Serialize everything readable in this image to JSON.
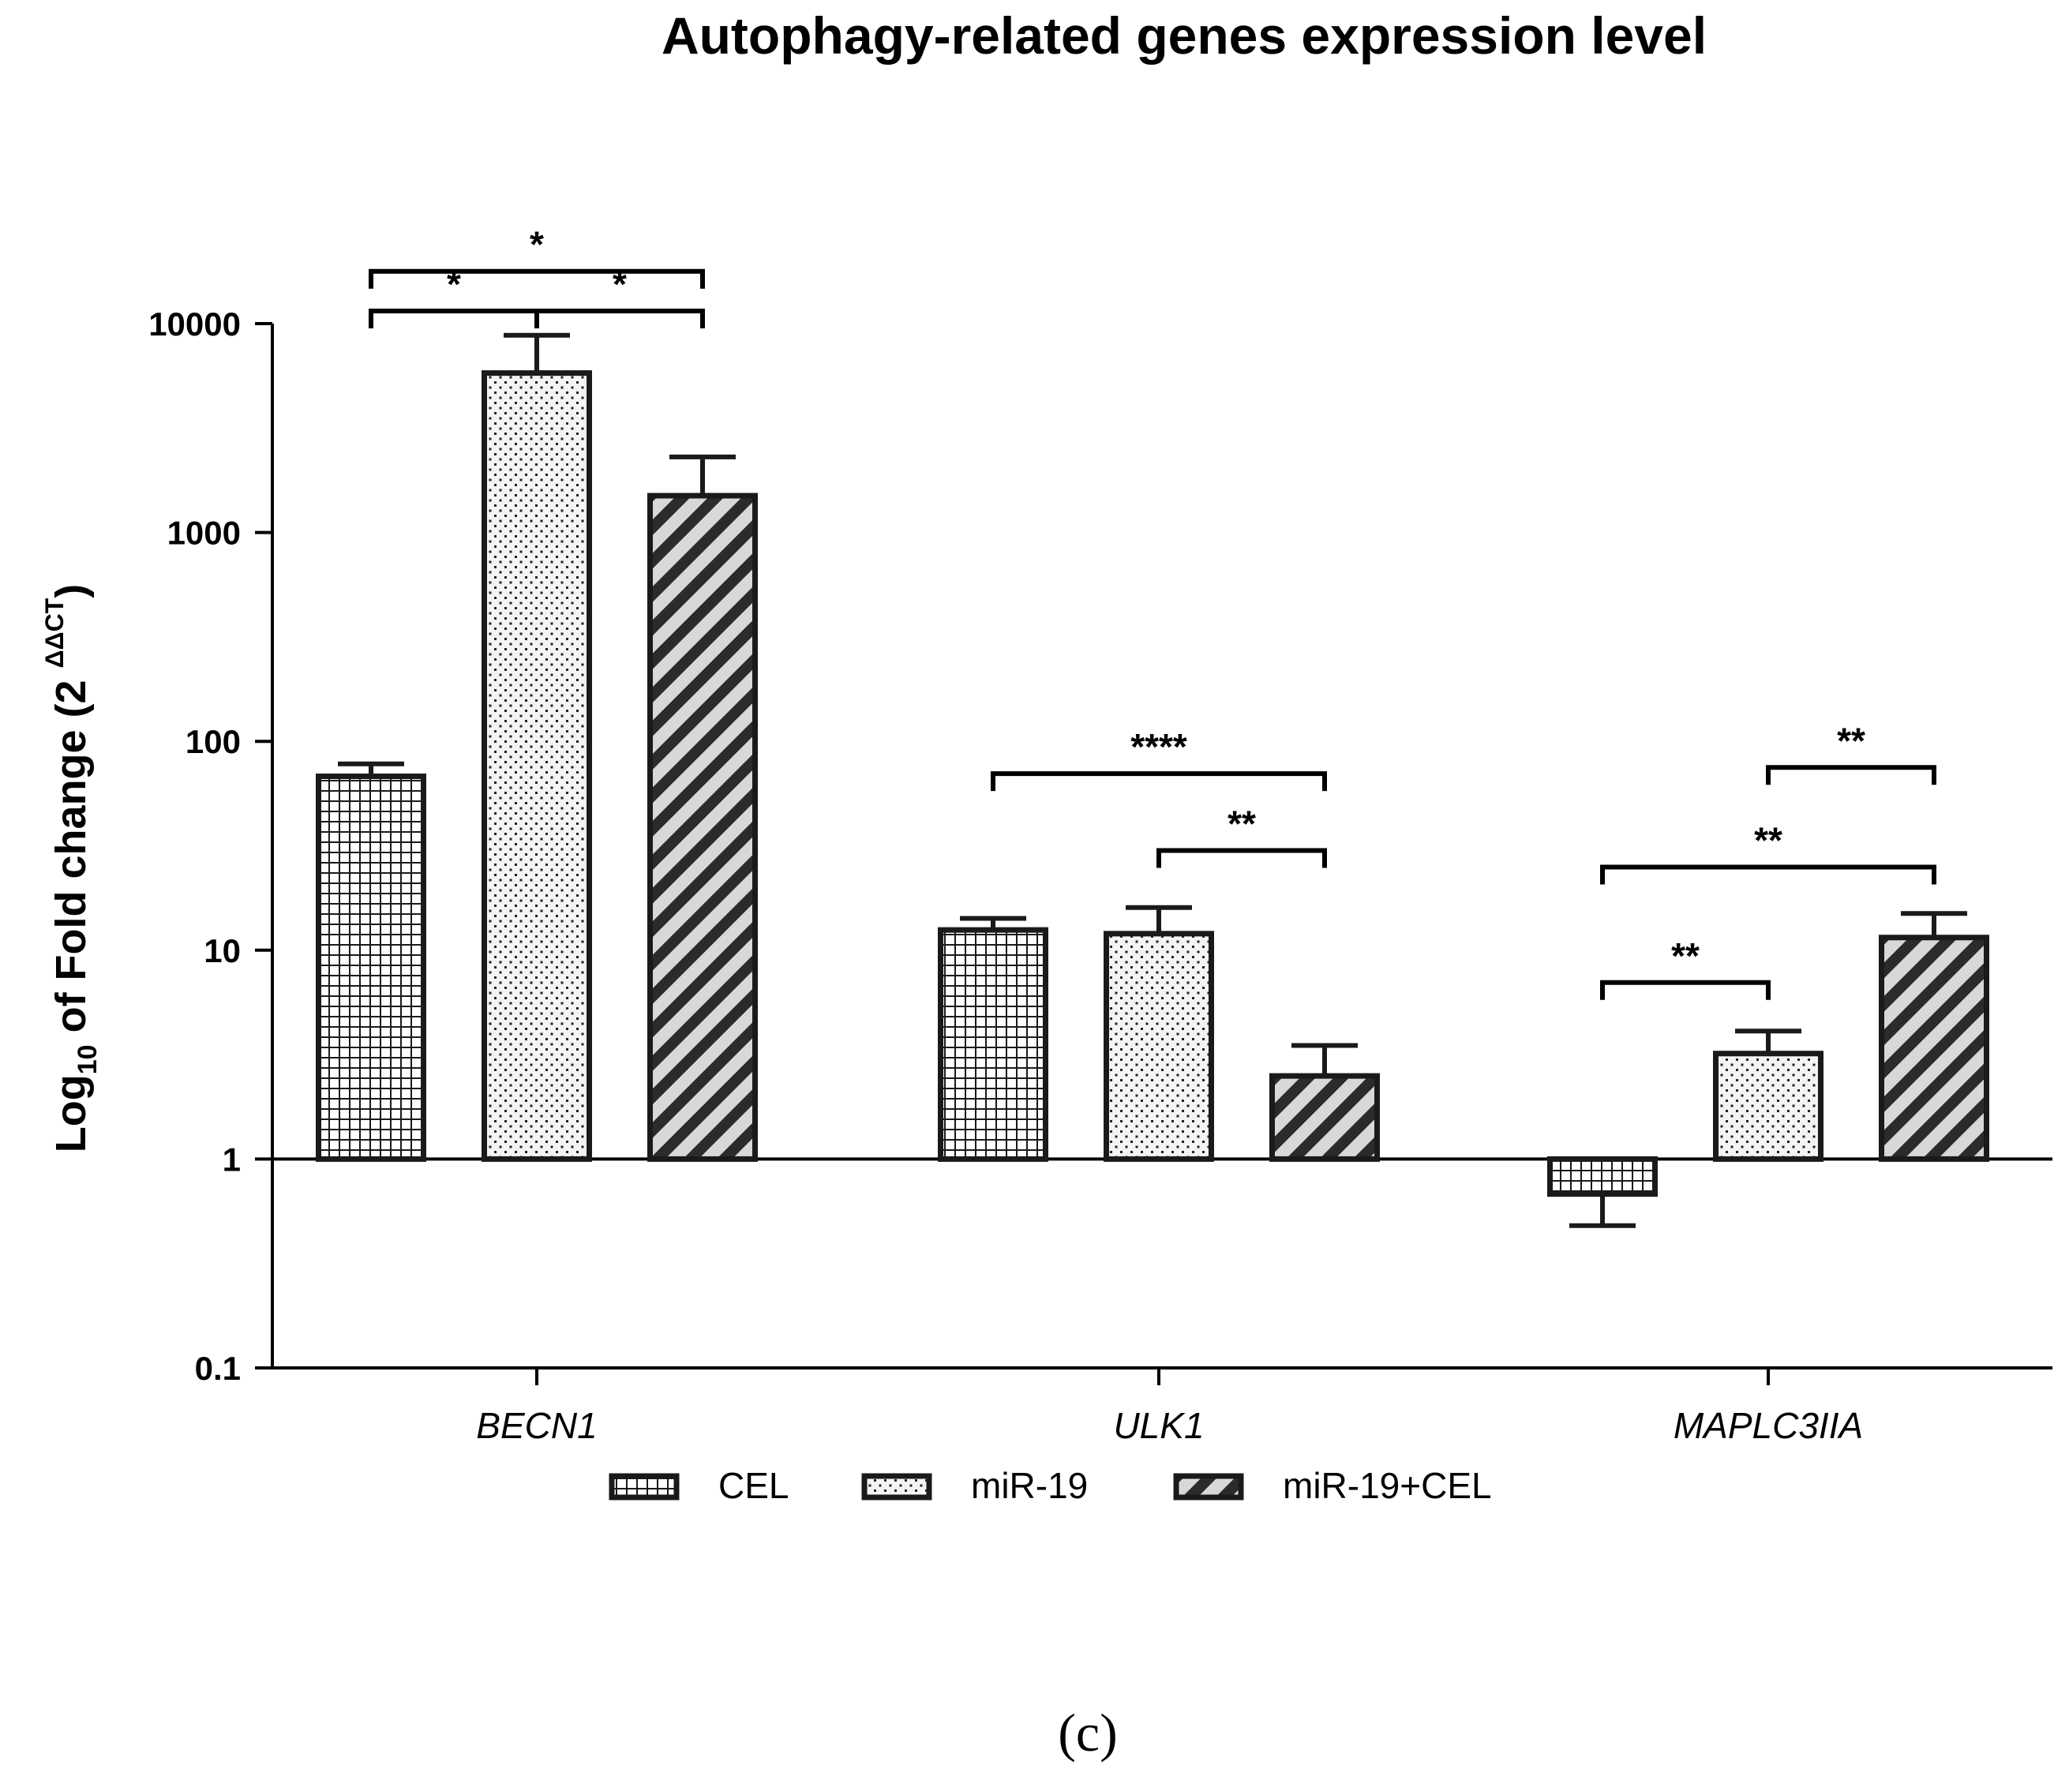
{
  "chart_data": {
    "type": "bar",
    "title": "Autophagy-related genes expression level",
    "ylabel": {
      "prefix": "Log",
      "sub": "10",
      "middle": " of Fold change (2 ",
      "sup": "ΔΔCT",
      "suffix": ")"
    },
    "yscale": "log",
    "ylim": [
      0.1,
      10000
    ],
    "baseline": 1,
    "yticks": [
      {
        "value": 0.1,
        "label": "0.1"
      },
      {
        "value": 1,
        "label": "1"
      },
      {
        "value": 10,
        "label": "10"
      },
      {
        "value": 100,
        "label": "100"
      },
      {
        "value": 1000,
        "label": "1000"
      },
      {
        "value": 10000,
        "label": "10000"
      }
    ],
    "categories": [
      "BECN1",
      "ULK1",
      "MAPLC3IIA"
    ],
    "series": [
      {
        "name": "CEL",
        "pattern": "grid",
        "values": [
          68,
          12.5,
          0.68
        ],
        "errors": [
          78,
          14.2,
          0.48
        ]
      },
      {
        "name": "miR-19",
        "pattern": "dots",
        "values": [
          5800,
          12,
          3.2
        ],
        "errors": [
          8800,
          16,
          4.1
        ]
      },
      {
        "name": "miR-19+CEL",
        "pattern": "hatch",
        "values": [
          1500,
          2.5,
          11.5
        ],
        "errors": [
          2300,
          3.5,
          15
        ]
      }
    ],
    "significance": [
      {
        "category": 0,
        "from": 0,
        "to": 2,
        "level": 17800,
        "label": "*"
      },
      {
        "category": 0,
        "from": 0,
        "to": 1,
        "level": 11500,
        "label": "*"
      },
      {
        "category": 0,
        "from": 1,
        "to": 2,
        "level": 11500,
        "label": "*"
      },
      {
        "category": 1,
        "from": 0,
        "to": 2,
        "level": 70,
        "label": "****"
      },
      {
        "category": 1,
        "from": 1,
        "to": 2,
        "level": 30,
        "label": "**"
      },
      {
        "category": 2,
        "from": 1,
        "to": 2,
        "level": 75,
        "label": "**"
      },
      {
        "category": 2,
        "from": 0,
        "to": 2,
        "level": 25,
        "label": "**"
      },
      {
        "category": 2,
        "from": 0,
        "to": 1,
        "level": 7,
        "label": "**"
      }
    ],
    "legend_position": "bottom"
  },
  "caption": "(c)"
}
